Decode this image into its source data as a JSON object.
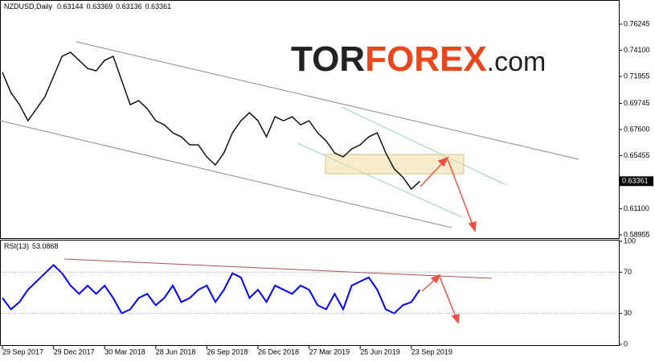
{
  "logo": [
    "TOR",
    "FOREX",
    ".com"
  ],
  "chart_data": [
    {
      "type": "line",
      "title": "NZDUSD,Daily",
      "ohlc": [
        0.63144,
        0.63369,
        0.63136,
        0.63361
      ],
      "series": [
        {
          "color": "#000000",
          "values": [
            0.7228,
            0.7063,
            0.6964,
            0.6832,
            0.6931,
            0.703,
            0.7195,
            0.736,
            0.7393,
            0.7327,
            0.7261,
            0.7241,
            0.7327,
            0.736,
            0.7162,
            0.6964,
            0.6997,
            0.6931,
            0.6832,
            0.6799,
            0.6733,
            0.67,
            0.6634,
            0.6634,
            0.6535,
            0.6469,
            0.6568,
            0.6733,
            0.6832,
            0.6898,
            0.6832,
            0.67,
            0.6865,
            0.6832,
            0.6865,
            0.6799,
            0.6832,
            0.6733,
            0.6667,
            0.6568,
            0.6535,
            0.6601,
            0.6634,
            0.67,
            0.6733,
            0.6568,
            0.6436,
            0.637,
            0.6271,
            0.63361
          ]
        }
      ],
      "ylim": [
        0.5876,
        0.7789
      ],
      "yticks": [
        0.76245,
        {
          "value": 0.741,
          "label": "0.74100"
        },
        0.71955,
        0.69745,
        {
          "value": 0.676,
          "label": "0.67600"
        },
        0.65455,
        {
          "value": 0.611,
          "label": "0.61100"
        },
        0.58955
      ]
    },
    {
      "type": "line",
      "title": "RSI(13)",
      "last_value": 53.0868,
      "categories": [
        "29 Sep 2017",
        null,
        null,
        null,
        null,
        null,
        "29 Dec 2017",
        null,
        null,
        null,
        null,
        null,
        "30 Mar 2018",
        null,
        null,
        null,
        null,
        null,
        "28 Jun 2018",
        null,
        null,
        null,
        null,
        null,
        "26 Sep 2018",
        null,
        null,
        null,
        null,
        null,
        "26 Dec 2018",
        null,
        null,
        null,
        null,
        null,
        "27 Mar 2019",
        null,
        null,
        null,
        null,
        null,
        "25 Jun 2019",
        null,
        null,
        null,
        null,
        null,
        "23 Sep 2019",
        null
      ],
      "series": [
        {
          "color": "#0000ff",
          "values": [
            45,
            34,
            41,
            53,
            61,
            69,
            77,
            69,
            57,
            49,
            57,
            49,
            57,
            45,
            30,
            34,
            45,
            49,
            38,
            45,
            57,
            41,
            45,
            53,
            57,
            41,
            53,
            69,
            65,
            45,
            53,
            41,
            57,
            53,
            49,
            57,
            53,
            38,
            34,
            49,
            34,
            57,
            61,
            65,
            53,
            34,
            30,
            38,
            41,
            53
          ]
        }
      ],
      "ylim": [
        0,
        100
      ],
      "yticks": [
        0,
        30,
        70,
        100
      ]
    }
  ]
}
